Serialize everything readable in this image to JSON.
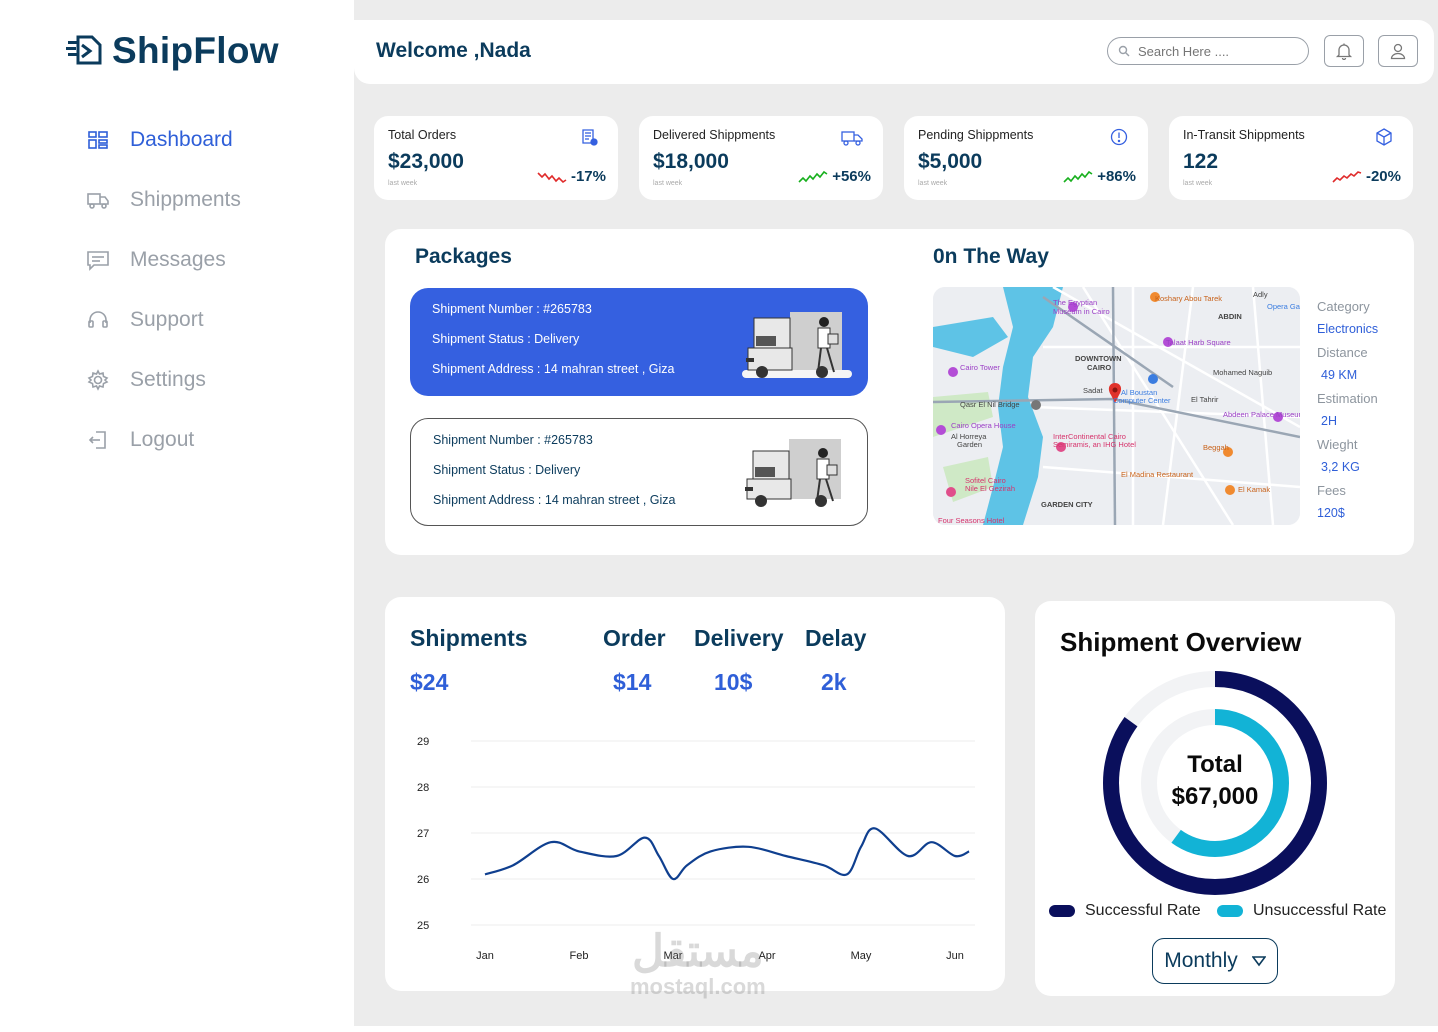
{
  "app": {
    "name": "ShipFlow"
  },
  "sidebar": {
    "items": [
      {
        "label": "Dashboard",
        "icon": "dashboard-icon",
        "active": true
      },
      {
        "label": "Shippments",
        "icon": "truck-icon",
        "active": false
      },
      {
        "label": "Messages",
        "icon": "message-icon",
        "active": false
      },
      {
        "label": "Support",
        "icon": "headset-icon",
        "active": false
      },
      {
        "label": "Settings",
        "icon": "gear-icon",
        "active": false
      },
      {
        "label": "Logout",
        "icon": "logout-icon",
        "active": false
      }
    ]
  },
  "header": {
    "welcome": "Welcome ,Nada",
    "search_placeholder": "Search Here ....",
    "icons": [
      "bell-icon",
      "user-icon"
    ]
  },
  "stats": [
    {
      "title": "Total Orders",
      "value": "$23,000",
      "sub": "last week",
      "change": "-17%",
      "trend": "down",
      "icon": "receipt-icon"
    },
    {
      "title": "Delivered Shippments",
      "value": "$18,000",
      "sub": "last week",
      "change": "+56%",
      "trend": "up",
      "icon": "truck-icon"
    },
    {
      "title": "Pending Shippments",
      "value": "$5,000",
      "sub": "last week",
      "change": "+86%",
      "trend": "up",
      "icon": "alert-icon"
    },
    {
      "title": "In-Transit Shippments",
      "value": "122",
      "sub": "last week",
      "change": "-20%",
      "trend": "down",
      "icon": "box-icon"
    }
  ],
  "packages": {
    "title": "Packages",
    "items": [
      {
        "number": "Shipment Number : #265783",
        "status": "Shipment Status : Delivery",
        "address": "Shipment Address : 14 mahran street , Giza"
      },
      {
        "number": "Shipment Number : #265783",
        "status": "Shipment Status : Delivery",
        "address": "Shipment Address : 14 mahran street , Giza"
      }
    ]
  },
  "on_the_way": {
    "title": "0n The Way",
    "map_labels": [
      "The Egyptian Museum in Cairo",
      "Koshary Abou Tarek",
      "Adly",
      "ABDIN",
      "Opera Gara",
      "Talaat Harb Square",
      "DOWNTOWN CAIRO",
      "Cairo Tower",
      "Mohamed Naguib",
      "Sadat",
      "Al Boustan Computer Center",
      "El Tahrir",
      "Qasr El Nil Bridge",
      "Abdeen Palace Museum",
      "Cairo Opera House",
      "Al Horreya Garden",
      "InterContinental Cairo Semiramis, an IHG Hotel",
      "Beggah",
      "El Madina Restaurant",
      "Sofitel Cairo Nile El Gezirah",
      "El Kamak",
      "GARDEN CITY",
      "Four Seasons Hotel"
    ],
    "details": [
      {
        "label": "Category",
        "value": "Electronics"
      },
      {
        "label": "Distance",
        "value": "49 KM"
      },
      {
        "label": "Estimation",
        "value": "2H"
      },
      {
        "label": "Wieght",
        "value": "3,2 KG"
      },
      {
        "label": "Fees",
        "value": "120$"
      }
    ]
  },
  "metrics": [
    {
      "label": "Shipments",
      "value": "$24"
    },
    {
      "label": "Order",
      "value": "$14"
    },
    {
      "label": "Delivery",
      "value": "10$"
    },
    {
      "label": "Delay",
      "value": "2k"
    }
  ],
  "chart_data": {
    "type": "line",
    "title": "",
    "xlabel": "",
    "ylabel": "",
    "categories": [
      "Jan",
      "Feb",
      "Mar",
      "Apr",
      "May",
      "Jun"
    ],
    "y_ticks": [
      29,
      28,
      27,
      26,
      25
    ],
    "ylim": [
      25,
      29
    ],
    "grid": true,
    "color": "#0f3f8f",
    "x": [
      0,
      0.3,
      0.7,
      1.0,
      1.4,
      1.7,
      1.85,
      2.0,
      2.15,
      2.4,
      2.8,
      3.2,
      3.6,
      3.85,
      4.0,
      4.15,
      4.5,
      4.75,
      5.0,
      5.15
    ],
    "y": [
      26.1,
      26.3,
      26.8,
      26.6,
      26.5,
      26.9,
      26.5,
      26.0,
      26.3,
      26.6,
      26.7,
      26.5,
      26.3,
      26.1,
      26.7,
      27.1,
      26.5,
      26.8,
      26.5,
      26.6
    ]
  },
  "overview": {
    "title": "Shipment Overview",
    "total_label": "Total",
    "total_value": "$67,000",
    "successful_rate": 0.85,
    "unsuccessful_rate": 0.6,
    "colors": {
      "successful": "#0a0f5c",
      "unsuccessful": "#12b3d6"
    },
    "legend": [
      "Successful Rate",
      "Unsuccessful Rate"
    ],
    "period": "Monthly"
  },
  "watermark": {
    "arabic": "مستقل",
    "site": "mostaql.com"
  }
}
